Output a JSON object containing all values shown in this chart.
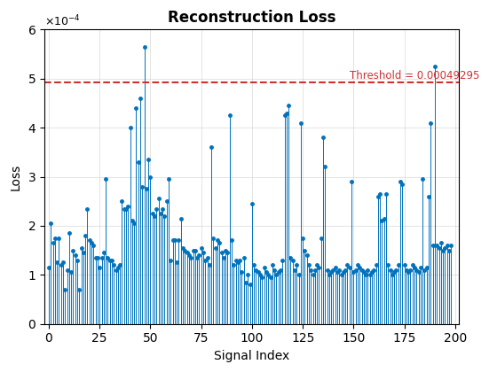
{
  "n": 200,
  "threshold": 0.00049295,
  "ylim_max": 0.0006,
  "title": "Reconstruction Loss",
  "xlabel": "Signal Index",
  "ylabel": "Loss",
  "stem_color": "#0072BD",
  "threshold_color": "#CC3333",
  "threshold_label": "Threshold = 0.00049295",
  "values": [
    0.000115,
    0.000205,
    0.000165,
    0.000175,
    0.000125,
    0.000175,
    0.00012,
    0.000125,
    7e-05,
    0.00011,
    0.000185,
    0.000105,
    0.00015,
    0.00014,
    0.00013,
    7e-05,
    0.000155,
    0.000145,
    0.00018,
    0.000235,
    0.00017,
    0.000165,
    0.00016,
    0.000135,
    0.000135,
    0.000115,
    0.000135,
    0.000145,
    0.000295,
    0.000135,
    0.00013,
    0.00013,
    0.00012,
    0.00011,
    0.000115,
    0.00012,
    0.00025,
    0.000235,
    0.000235,
    0.00024,
    0.0004,
    0.00021,
    0.000205,
    0.00044,
    0.00033,
    0.00046,
    0.00028,
    0.000565,
    0.000275,
    0.000335,
    0.0003,
    0.000225,
    0.00022,
    0.000235,
    0.000255,
    0.000225,
    0.000235,
    0.00022,
    0.00025,
    0.000295,
    0.00013,
    0.00017,
    0.00017,
    0.000125,
    0.00017,
    0.000215,
    0.000155,
    0.00015,
    0.000145,
    0.00014,
    0.000135,
    0.00015,
    0.00015,
    0.000135,
    0.00014,
    0.000155,
    0.000145,
    0.00013,
    0.000135,
    0.00012,
    0.00036,
    0.000175,
    0.000155,
    0.00017,
    0.000165,
    0.000145,
    0.000135,
    0.00015,
    0.000145,
    0.000425,
    0.00017,
    0.00012,
    0.00013,
    0.000125,
    0.00013,
    0.000105,
    0.000135,
    8.5e-05,
    0.0001,
    8e-05,
    0.000245,
    0.00012,
    0.00011,
    0.000105,
    0.0001,
    9.5e-05,
    0.000115,
    0.000105,
    0.0001,
    9.5e-05,
    0.00012,
    0.00011,
    0.0001,
    0.000105,
    0.00011,
    0.00013,
    0.000425,
    0.00043,
    0.000445,
    0.000135,
    0.00013,
    0.00011,
    0.00012,
    0.0001,
    0.00041,
    0.000175,
    0.00015,
    0.00014,
    0.00012,
    0.00011,
    0.0001,
    0.00011,
    0.00012,
    0.000115,
    0.000175,
    0.00038,
    0.00032,
    0.00011,
    0.0001,
    0.000105,
    0.00011,
    0.000115,
    0.000105,
    0.00011,
    0.0001,
    0.000105,
    0.00011,
    0.00012,
    0.000115,
    0.00029,
    0.000105,
    0.00011,
    0.00012,
    0.000115,
    0.00011,
    0.000105,
    0.0001,
    0.00011,
    0.0001,
    0.000105,
    0.00011,
    0.00012,
    0.00026,
    0.000265,
    0.00021,
    0.000215,
    0.000265,
    0.00012,
    0.00011,
    0.0001,
    0.000105,
    0.00011,
    0.00012,
    0.00029,
    0.000285,
    0.00012,
    0.00011,
    0.000105,
    0.00011,
    0.00012,
    0.000115,
    0.00011,
    0.000105,
    0.000115,
    0.000295,
    0.00011,
    0.000115,
    0.00026,
    0.00041,
    0.00016,
    0.000525,
    0.00016,
    0.000155,
    0.000165,
    0.00015,
    0.000155,
    0.00016,
    0.00015,
    0.00016
  ]
}
